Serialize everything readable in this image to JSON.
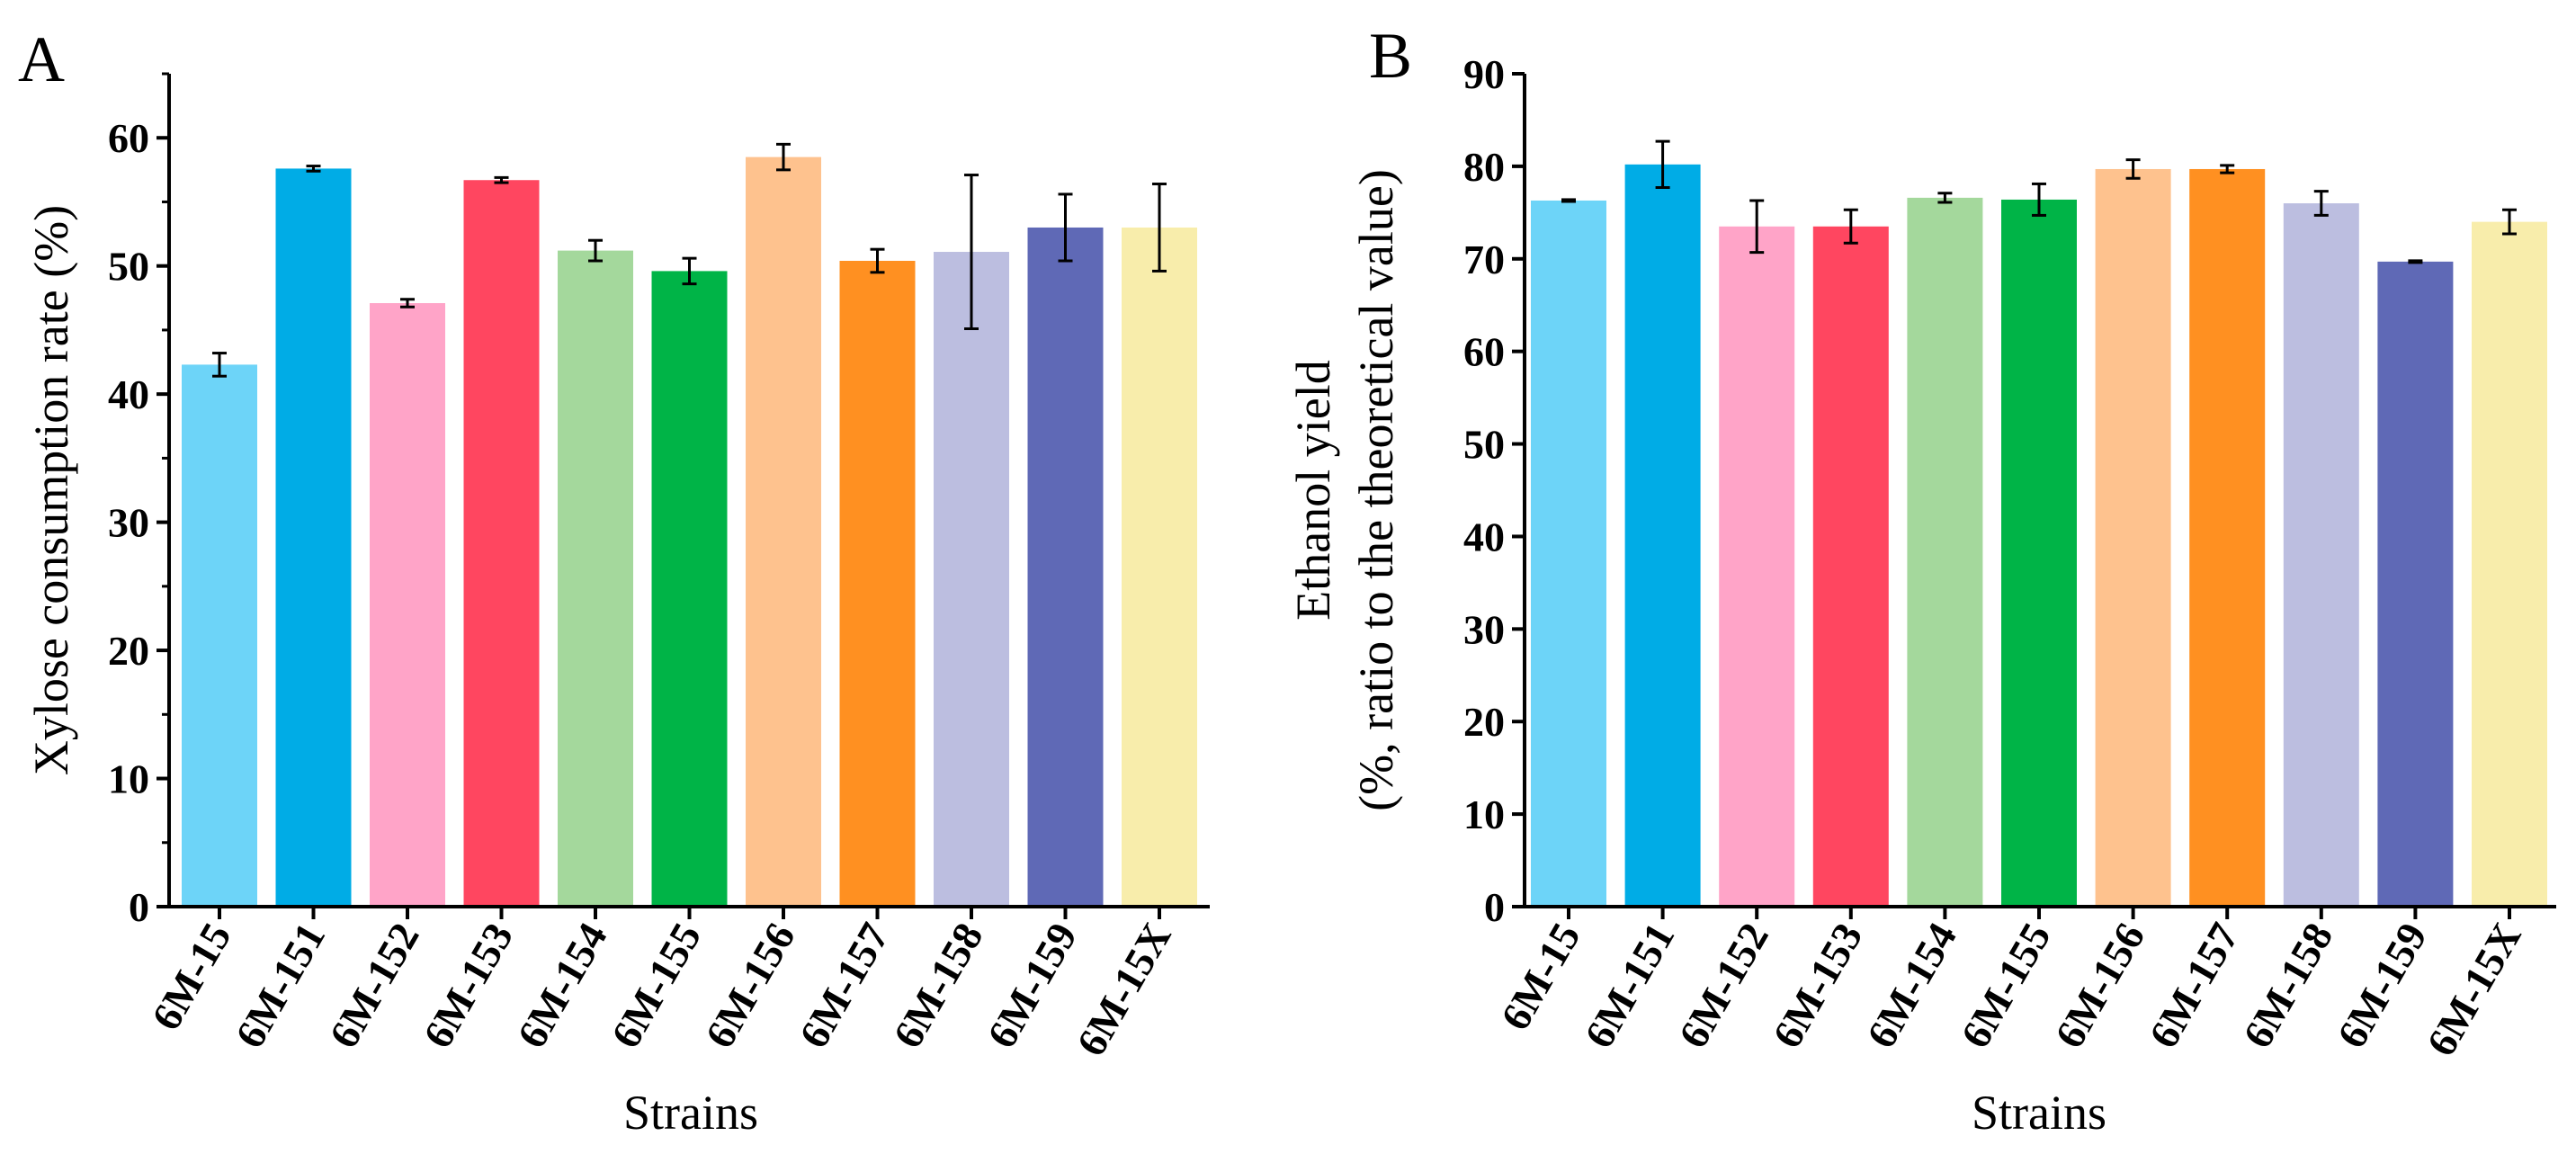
{
  "chart_data": [
    {
      "type": "bar",
      "panel": "A",
      "title": "",
      "xlabel": "Strains",
      "ylabel": "Xylose consumption rate (%)",
      "ylabel_line2": "",
      "ylim": [
        0,
        65
      ],
      "yticks": [
        0,
        10,
        20,
        30,
        40,
        50,
        60
      ],
      "minor_step": 5,
      "categories": [
        "6M-15",
        "6M-151",
        "6M-152",
        "6M-153",
        "6M-154",
        "6M-155",
        "6M-156",
        "6M-157",
        "6M-158",
        "6M-159",
        "6M-15X"
      ],
      "values": [
        42.3,
        57.6,
        47.1,
        56.7,
        51.2,
        49.6,
        58.5,
        50.4,
        51.1,
        53.0,
        53.0
      ],
      "errors": [
        0.9,
        0.2,
        0.3,
        0.2,
        0.8,
        1.0,
        1.0,
        0.9,
        6.0,
        2.6,
        3.4
      ],
      "colors": [
        "#6dd4f8",
        "#00ace6",
        "#ffa4c8",
        "#ff4660",
        "#a4d89c",
        "#00b447",
        "#fec28e",
        "#ff9021",
        "#bcbee0",
        "#5f69b6",
        "#f8edab"
      ]
    },
    {
      "type": "bar",
      "panel": "B",
      "title": "",
      "xlabel": "Strains",
      "ylabel": "Ethanol yield",
      "ylabel_line2": "(%, ratio to the theoretical value)",
      "ylim": [
        0,
        90
      ],
      "yticks": [
        0,
        10,
        20,
        30,
        40,
        50,
        60,
        70,
        80,
        90
      ],
      "minor_step": 0,
      "categories": [
        "6M-15",
        "6M-151",
        "6M-152",
        "6M-153",
        "6M-154",
        "6M-155",
        "6M-156",
        "6M-157",
        "6M-158",
        "6M-159",
        "6M-15X"
      ],
      "values": [
        76.3,
        80.2,
        73.5,
        73.5,
        76.6,
        76.4,
        79.7,
        79.7,
        76.0,
        69.7,
        74.0
      ],
      "errors": [
        0.1,
        2.5,
        2.8,
        1.8,
        0.5,
        1.7,
        1.0,
        0.4,
        1.3,
        0.1,
        1.3
      ],
      "colors": [
        "#6dd4f8",
        "#00ace6",
        "#ffa4c8",
        "#ff4660",
        "#a4d89c",
        "#00b447",
        "#fec28e",
        "#ff9021",
        "#bcbee0",
        "#5f69b6",
        "#f8edab"
      ]
    }
  ]
}
